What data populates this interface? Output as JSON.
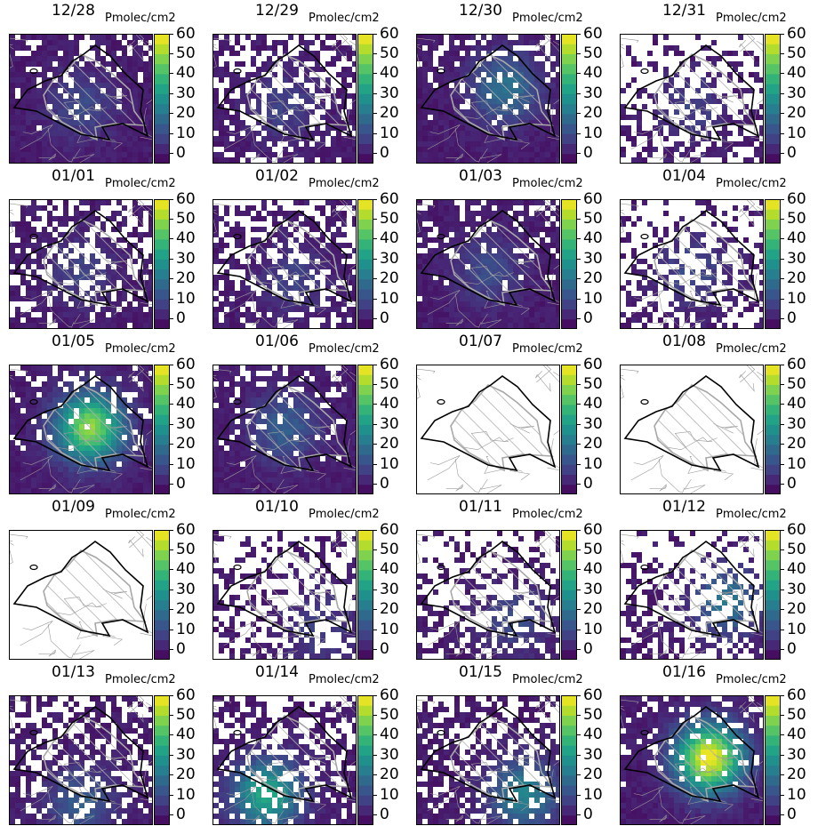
{
  "chart_data": {
    "type": "heatmap",
    "colorbar": {
      "label": "Pmolec/cm2",
      "ticks": [
        0,
        10,
        20,
        30,
        40,
        50,
        60
      ],
      "range": [
        -5,
        60
      ],
      "colormap": "viridis"
    },
    "panels": [
      {
        "date": "12/28",
        "unit": "Pmolec/cm2",
        "coverage": "high",
        "peak": 10
      },
      {
        "date": "12/29",
        "unit": "Pmolec/cm2",
        "coverage": "medium",
        "peak": 8
      },
      {
        "date": "12/30",
        "unit": "Pmolec/cm2",
        "coverage": "high",
        "peak": 20
      },
      {
        "date": "12/31",
        "unit": "Pmolec/cm2",
        "coverage": "low",
        "peak": 8
      },
      {
        "date": "01/01",
        "unit": "Pmolec/cm2",
        "coverage": "medium",
        "peak": 8
      },
      {
        "date": "01/02",
        "unit": "Pmolec/cm2",
        "coverage": "medium",
        "peak": 8
      },
      {
        "date": "01/03",
        "unit": "Pmolec/cm2",
        "coverage": "high",
        "peak": 10
      },
      {
        "date": "01/04",
        "unit": "Pmolec/cm2",
        "coverage": "low",
        "peak": 10
      },
      {
        "date": "01/05",
        "unit": "Pmolec/cm2",
        "coverage": "high",
        "peak": 50
      },
      {
        "date": "01/06",
        "unit": "Pmolec/cm2",
        "coverage": "high",
        "peak": 15
      },
      {
        "date": "01/07",
        "unit": "Pmolec/cm2",
        "coverage": "none",
        "peak": 0
      },
      {
        "date": "01/08",
        "unit": "Pmolec/cm2",
        "coverage": "none",
        "peak": 0
      },
      {
        "date": "01/09",
        "unit": "Pmolec/cm2",
        "coverage": "none",
        "peak": 0
      },
      {
        "date": "01/10",
        "unit": "Pmolec/cm2",
        "coverage": "low",
        "peak": 8
      },
      {
        "date": "01/11",
        "unit": "Pmolec/cm2",
        "coverage": "low",
        "peak": 10
      },
      {
        "date": "01/12",
        "unit": "Pmolec/cm2",
        "coverage": "low",
        "peak": 20
      },
      {
        "date": "01/13",
        "unit": "Pmolec/cm2",
        "coverage": "medium",
        "peak": 15
      },
      {
        "date": "01/14",
        "unit": "Pmolec/cm2",
        "coverage": "medium",
        "peak": 35
      },
      {
        "date": "01/15",
        "unit": "Pmolec/cm2",
        "coverage": "medium",
        "peak": 25
      },
      {
        "date": "01/16",
        "unit": "Pmolec/cm2",
        "coverage": "high",
        "peak": 60
      }
    ]
  }
}
